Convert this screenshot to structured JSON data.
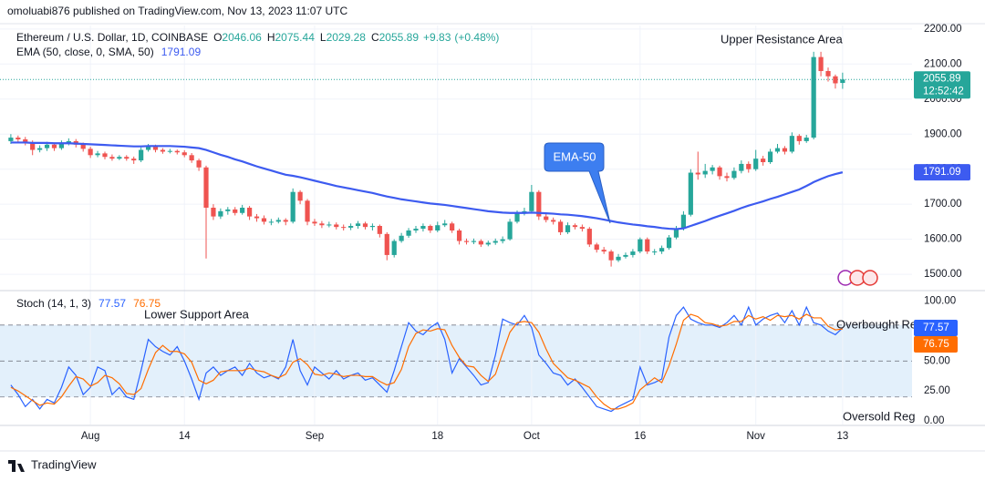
{
  "header": {
    "publisher": "omoluabi876 published on TradingView.com, Nov 13, 2023 11:07 UTC",
    "brand": "TradingView"
  },
  "chart_data": [
    {
      "type": "candlestick",
      "title": "Ethereum / U.S. Dollar, 1D, COINBASE",
      "ohlc_labels": [
        "O",
        "H",
        "L",
        "C"
      ],
      "change": "+9.83",
      "change_pct": "(+0.48%)",
      "countdown": "12:52:42",
      "xlim": [
        -1.5,
        124.6
      ],
      "xticks": [
        {
          "value": 11,
          "label": "Aug"
        },
        {
          "value": 24,
          "label": "14"
        },
        {
          "value": 42,
          "label": "Sep"
        },
        {
          "value": 59,
          "label": "18"
        },
        {
          "value": 72,
          "label": "Oct"
        },
        {
          "value": 87,
          "label": "16"
        },
        {
          "value": 103,
          "label": "Nov"
        },
        {
          "value": 115,
          "label": "13"
        }
      ],
      "ylim": [
        1456,
        2210
      ],
      "yticks": [
        {
          "value": 1500,
          "label": "1500.00"
        },
        {
          "value": 1600,
          "label": "1600.00"
        },
        {
          "value": 1700,
          "label": "1700.00"
        },
        {
          "value": 1800,
          "label": "1800.00"
        },
        {
          "value": 1900,
          "label": "1900.00"
        },
        {
          "value": 2000,
          "label": "2000.00"
        },
        {
          "value": 2100,
          "label": "2100.00"
        },
        {
          "value": 2200,
          "label": "2200.00"
        }
      ],
      "grid": true,
      "up_color": "#26a69a",
      "down_color": "#ef5350",
      "open": [
        1880,
        1890,
        1885,
        1875,
        1855,
        1860,
        1870,
        1860,
        1875,
        1880,
        1870,
        1858,
        1840,
        1845,
        1835,
        1830,
        1835,
        1830,
        1825,
        1855,
        1865,
        1855,
        1850,
        1852,
        1848,
        1840,
        1825,
        1805,
        1690,
        1665,
        1680,
        1685,
        1675,
        1690,
        1665,
        1660,
        1650,
        1650,
        1655,
        1650,
        1735,
        1710,
        1650,
        1645,
        1640,
        1642,
        1635,
        1633,
        1638,
        1645,
        1635,
        1638,
        1615,
        1555,
        1595,
        1610,
        1625,
        1630,
        1638,
        1625,
        1640,
        1645,
        1625,
        1595,
        1592,
        1595,
        1585,
        1590,
        1595,
        1600,
        1650,
        1675,
        1680,
        1735,
        1665,
        1655,
        1650,
        1620,
        1640,
        1635,
        1630,
        1585,
        1570,
        1565,
        1540,
        1550,
        1555,
        1565,
        1600,
        1565,
        1565,
        1575,
        1605,
        1630,
        1670,
        1790,
        1785,
        1795,
        1805,
        1780,
        1775,
        1795,
        1815,
        1800,
        1830,
        1820,
        1850,
        1860,
        1850,
        1895,
        1880,
        1890,
        2120,
        2080,
        2065,
        2046.06
      ],
      "high": [
        1900,
        1896,
        1892,
        1882,
        1868,
        1878,
        1876,
        1882,
        1888,
        1886,
        1876,
        1864,
        1852,
        1850,
        1842,
        1840,
        1840,
        1836,
        1862,
        1872,
        1870,
        1860,
        1858,
        1856,
        1854,
        1846,
        1830,
        1810,
        1700,
        1688,
        1692,
        1692,
        1698,
        1695,
        1672,
        1668,
        1658,
        1662,
        1660,
        1745,
        1740,
        1715,
        1658,
        1652,
        1650,
        1648,
        1642,
        1645,
        1652,
        1650,
        1645,
        1642,
        1620,
        1600,
        1618,
        1632,
        1638,
        1645,
        1642,
        1650,
        1655,
        1650,
        1630,
        1602,
        1602,
        1600,
        1596,
        1602,
        1608,
        1658,
        1682,
        1690,
        1755,
        1740,
        1672,
        1662,
        1656,
        1648,
        1645,
        1642,
        1635,
        1590,
        1578,
        1570,
        1558,
        1562,
        1572,
        1605,
        1605,
        1572,
        1582,
        1612,
        1638,
        1680,
        1800,
        1850,
        1815,
        1812,
        1810,
        1790,
        1805,
        1825,
        1822,
        1855,
        1838,
        1858,
        1872,
        1866,
        1905,
        1900,
        1898,
        2135,
        2135,
        2090,
        2070,
        2075.44
      ],
      "low": [
        1872,
        1878,
        1868,
        1840,
        1848,
        1852,
        1852,
        1855,
        1868,
        1862,
        1850,
        1832,
        1834,
        1828,
        1824,
        1826,
        1824,
        1815,
        1820,
        1850,
        1848,
        1844,
        1845,
        1842,
        1834,
        1818,
        1795,
        1545,
        1655,
        1658,
        1670,
        1668,
        1670,
        1655,
        1650,
        1642,
        1640,
        1645,
        1640,
        1645,
        1700,
        1640,
        1638,
        1632,
        1634,
        1628,
        1625,
        1626,
        1630,
        1628,
        1625,
        1605,
        1540,
        1548,
        1590,
        1604,
        1618,
        1622,
        1618,
        1620,
        1635,
        1618,
        1585,
        1585,
        1586,
        1578,
        1580,
        1584,
        1588,
        1596,
        1645,
        1668,
        1675,
        1655,
        1648,
        1642,
        1612,
        1615,
        1628,
        1622,
        1578,
        1562,
        1558,
        1522,
        1535,
        1545,
        1548,
        1560,
        1558,
        1555,
        1558,
        1570,
        1600,
        1625,
        1665,
        1770,
        1775,
        1785,
        1770,
        1765,
        1770,
        1788,
        1790,
        1795,
        1810,
        1815,
        1845,
        1842,
        1845,
        1870,
        1875,
        1885,
        2065,
        2050,
        2030,
        2029.28
      ],
      "close": [
        1890,
        1885,
        1875,
        1855,
        1860,
        1870,
        1860,
        1875,
        1880,
        1870,
        1858,
        1840,
        1845,
        1835,
        1830,
        1835,
        1830,
        1825,
        1855,
        1865,
        1855,
        1850,
        1852,
        1848,
        1840,
        1825,
        1805,
        1690,
        1665,
        1680,
        1685,
        1675,
        1690,
        1665,
        1660,
        1650,
        1650,
        1655,
        1650,
        1735,
        1710,
        1650,
        1645,
        1640,
        1642,
        1635,
        1633,
        1638,
        1645,
        1635,
        1638,
        1615,
        1555,
        1595,
        1610,
        1625,
        1630,
        1638,
        1625,
        1640,
        1645,
        1625,
        1595,
        1592,
        1595,
        1585,
        1590,
        1595,
        1600,
        1650,
        1675,
        1680,
        1735,
        1665,
        1655,
        1650,
        1620,
        1640,
        1635,
        1630,
        1585,
        1570,
        1565,
        1540,
        1550,
        1555,
        1565,
        1600,
        1565,
        1565,
        1575,
        1605,
        1630,
        1670,
        1790,
        1785,
        1795,
        1805,
        1780,
        1775,
        1795,
        1815,
        1800,
        1830,
        1820,
        1850,
        1860,
        1850,
        1895,
        1880,
        1890,
        2120,
        2080,
        2065,
        2045,
        2055.89
      ],
      "overlays": [
        {
          "type": "line",
          "name": "EMA (50, close, 0, SMA, 50)",
          "color": "#3d5bf0",
          "values": [
            1876,
            1876,
            1876,
            1875,
            1875,
            1875,
            1874,
            1874,
            1874,
            1873,
            1872,
            1871,
            1870,
            1869,
            1868,
            1867,
            1866,
            1865,
            1865,
            1866,
            1866,
            1866,
            1866,
            1865,
            1864,
            1862,
            1860,
            1855,
            1848,
            1841,
            1835,
            1828,
            1822,
            1815,
            1808,
            1802,
            1796,
            1790,
            1784,
            1781,
            1777,
            1772,
            1767,
            1762,
            1757,
            1752,
            1748,
            1744,
            1740,
            1736,
            1732,
            1727,
            1722,
            1718,
            1714,
            1711,
            1708,
            1705,
            1702,
            1700,
            1698,
            1695,
            1692,
            1689,
            1686,
            1683,
            1680,
            1678,
            1676,
            1675,
            1675,
            1675,
            1676,
            1675,
            1674,
            1673,
            1671,
            1670,
            1668,
            1666,
            1663,
            1660,
            1656,
            1652,
            1648,
            1645,
            1642,
            1640,
            1637,
            1635,
            1632,
            1630,
            1629,
            1631,
            1638,
            1645,
            1652,
            1660,
            1667,
            1674,
            1681,
            1689,
            1696,
            1702,
            1708,
            1715,
            1721,
            1728,
            1735,
            1742,
            1752,
            1763,
            1772,
            1780,
            1786,
            1791.09
          ]
        }
      ],
      "annotations": [
        "Upper Resistance Area",
        "EMA-50"
      ]
    },
    {
      "type": "line",
      "title": "Stoch (14, 1, 3)",
      "ylim": [
        -3,
        108
      ],
      "yticks": [
        {
          "value": 0,
          "label": "0.00"
        },
        {
          "value": 25,
          "label": "25.00"
        },
        {
          "value": 50,
          "label": "50.00"
        },
        {
          "value": 100,
          "label": "100.00"
        }
      ],
      "band": [
        20,
        80
      ],
      "midline": 50,
      "band_color": "#e3f0fb",
      "series": [
        {
          "color": "#2962ff",
          "values": [
            30,
            22,
            12,
            18,
            10,
            18,
            15,
            28,
            45,
            38,
            22,
            28,
            45,
            42,
            22,
            28,
            20,
            18,
            42,
            68,
            62,
            58,
            55,
            62,
            50,
            35,
            18,
            40,
            45,
            38,
            42,
            45,
            38,
            48,
            40,
            36,
            38,
            35,
            45,
            68,
            42,
            30,
            45,
            40,
            35,
            42,
            35,
            38,
            40,
            34,
            36,
            30,
            24,
            42,
            62,
            82,
            75,
            72,
            78,
            82,
            68,
            40,
            52,
            45,
            38,
            30,
            32,
            55,
            85,
            82,
            80,
            88,
            78,
            55,
            48,
            40,
            38,
            30,
            35,
            28,
            20,
            12,
            10,
            8,
            12,
            15,
            18,
            45,
            30,
            32,
            35,
            70,
            88,
            95,
            85,
            82,
            80,
            80,
            78,
            82,
            88,
            80,
            95,
            80,
            85,
            88,
            90,
            82,
            92,
            80,
            95,
            82,
            80,
            75,
            72,
            77.57
          ]
        },
        {
          "color": "#ff6d00",
          "values": [
            28,
            25,
            21,
            17,
            13,
            15,
            14,
            20,
            29,
            37,
            35,
            29,
            32,
            38,
            36,
            31,
            23,
            22,
            27,
            43,
            57,
            63,
            58,
            58,
            56,
            49,
            34,
            31,
            34,
            41,
            42,
            42,
            42,
            44,
            42,
            41,
            38,
            36,
            39,
            49,
            52,
            47,
            39,
            38,
            40,
            39,
            37,
            38,
            38,
            37,
            37,
            33,
            30,
            32,
            43,
            62,
            73,
            76,
            75,
            77,
            76,
            63,
            53,
            46,
            45,
            38,
            33,
            39,
            57,
            74,
            82,
            83,
            82,
            74,
            60,
            48,
            42,
            36,
            34,
            31,
            28,
            20,
            14,
            10,
            10,
            12,
            15,
            26,
            31,
            36,
            32,
            46,
            64,
            84,
            89,
            87,
            82,
            81,
            79,
            80,
            83,
            83,
            88,
            85,
            87,
            84,
            88,
            87,
            88,
            85,
            89,
            86,
            86,
            79,
            76,
            76.75
          ]
        }
      ],
      "annotations": [
        "Lower Support Area",
        "Overbought Re",
        "Oversold Reg"
      ]
    }
  ]
}
